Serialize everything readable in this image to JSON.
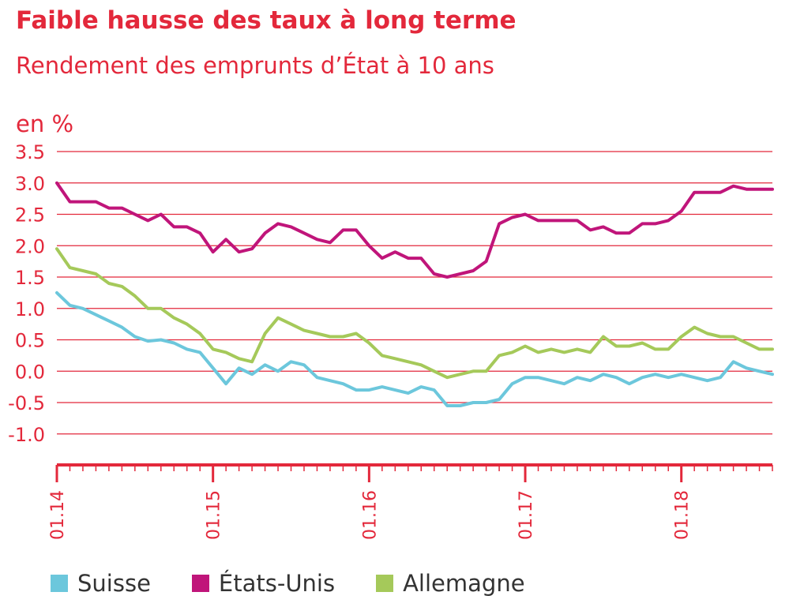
{
  "header": {
    "title": "Faible hausse des taux à long terme",
    "subtitle": "Rendement des emprunts d’État à 10 ans"
  },
  "colors": {
    "accent": "#e3283b",
    "grid": "#e3283b",
    "tick_text": "#e3283b"
  },
  "chart_data": {
    "type": "line",
    "title": "Faible hausse des taux à long terme",
    "subtitle": "Rendement des emprunts d’État à 10 ans",
    "ylabel": "en %",
    "xlabel": "",
    "ylim": [
      -1.0,
      3.5
    ],
    "yticks": [
      "3.5",
      "3.0",
      "2.5",
      "2.0",
      "1.5",
      "1.0",
      "0.5",
      "0.0",
      "-0.5",
      "-1.0"
    ],
    "xlim": [
      "2014-01",
      "2018-08"
    ],
    "xticks": [
      {
        "label": "01.14",
        "date": "2014-01"
      },
      {
        "label": "01.15",
        "date": "2015-01"
      },
      {
        "label": "01.16",
        "date": "2016-01"
      },
      {
        "label": "01.17",
        "date": "2017-01"
      },
      {
        "label": "01.18",
        "date": "2018-01"
      }
    ],
    "grid": true,
    "legend_position": "bottom",
    "x": [
      "2014-01",
      "2014-02",
      "2014-03",
      "2014-04",
      "2014-05",
      "2014-06",
      "2014-07",
      "2014-08",
      "2014-09",
      "2014-10",
      "2014-11",
      "2014-12",
      "2015-01",
      "2015-02",
      "2015-03",
      "2015-04",
      "2015-05",
      "2015-06",
      "2015-07",
      "2015-08",
      "2015-09",
      "2015-10",
      "2015-11",
      "2015-12",
      "2016-01",
      "2016-02",
      "2016-03",
      "2016-04",
      "2016-05",
      "2016-06",
      "2016-07",
      "2016-08",
      "2016-09",
      "2016-10",
      "2016-11",
      "2016-12",
      "2017-01",
      "2017-02",
      "2017-03",
      "2017-04",
      "2017-05",
      "2017-06",
      "2017-07",
      "2017-08",
      "2017-09",
      "2017-10",
      "2017-11",
      "2017-12",
      "2018-01",
      "2018-02",
      "2018-03",
      "2018-04",
      "2018-05",
      "2018-06",
      "2018-07",
      "2018-08"
    ],
    "series": [
      {
        "name": "Suisse",
        "color": "#6cc7dc",
        "values": [
          1.25,
          1.05,
          1.0,
          0.9,
          0.8,
          0.7,
          0.55,
          0.48,
          0.5,
          0.45,
          0.35,
          0.3,
          0.05,
          -0.2,
          0.05,
          -0.05,
          0.1,
          0.0,
          0.15,
          0.1,
          -0.1,
          -0.15,
          -0.2,
          -0.3,
          -0.3,
          -0.25,
          -0.3,
          -0.35,
          -0.25,
          -0.3,
          -0.55,
          -0.55,
          -0.5,
          -0.5,
          -0.45,
          -0.2,
          -0.1,
          -0.1,
          -0.15,
          -0.2,
          -0.1,
          -0.15,
          -0.05,
          -0.1,
          -0.2,
          -0.1,
          -0.05,
          -0.1,
          -0.05,
          -0.1,
          -0.15,
          -0.1,
          0.15,
          0.05,
          0.0,
          -0.05
        ]
      },
      {
        "name": "États-Unis",
        "color": "#c0157a",
        "values": [
          3.0,
          2.7,
          2.7,
          2.7,
          2.6,
          2.6,
          2.5,
          2.4,
          2.5,
          2.3,
          2.3,
          2.2,
          1.9,
          2.1,
          1.9,
          1.95,
          2.2,
          2.35,
          2.3,
          2.2,
          2.1,
          2.05,
          2.25,
          2.25,
          2.0,
          1.8,
          1.9,
          1.8,
          1.8,
          1.55,
          1.5,
          1.55,
          1.6,
          1.75,
          2.35,
          2.45,
          2.5,
          2.4,
          2.4,
          2.4,
          2.4,
          2.25,
          2.3,
          2.2,
          2.2,
          2.35,
          2.35,
          2.4,
          2.55,
          2.85,
          2.85,
          2.85,
          2.95,
          2.9,
          2.9,
          2.9
        ]
      },
      {
        "name": "Allemagne",
        "color": "#a5c95a",
        "values": [
          1.95,
          1.65,
          1.6,
          1.55,
          1.4,
          1.35,
          1.2,
          1.0,
          1.0,
          0.85,
          0.75,
          0.6,
          0.35,
          0.3,
          0.2,
          0.15,
          0.6,
          0.85,
          0.75,
          0.65,
          0.6,
          0.55,
          0.55,
          0.6,
          0.45,
          0.25,
          0.2,
          0.15,
          0.1,
          0.0,
          -0.1,
          -0.05,
          0.0,
          0.0,
          0.25,
          0.3,
          0.4,
          0.3,
          0.35,
          0.3,
          0.35,
          0.3,
          0.55,
          0.4,
          0.4,
          0.45,
          0.35,
          0.35,
          0.55,
          0.7,
          0.6,
          0.55,
          0.55,
          0.45,
          0.35,
          0.35
        ]
      }
    ]
  }
}
